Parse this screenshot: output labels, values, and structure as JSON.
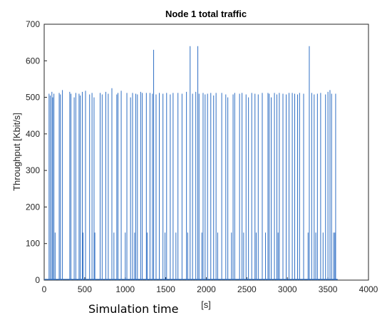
{
  "caption": "Simulation time",
  "chart_data": {
    "type": "line",
    "title": "Node 1 total traffic",
    "xlabel": "[s]",
    "ylabel": "Throughput [Kbit/s]",
    "xlim": [
      0,
      4000
    ],
    "ylim": [
      0,
      700
    ],
    "xticks": [
      0,
      500,
      1000,
      1500,
      2000,
      2500,
      3000,
      3500,
      4000
    ],
    "yticks": [
      0,
      100,
      200,
      300,
      400,
      500,
      600,
      700
    ],
    "grid": false,
    "series_color": "#2f6fc4",
    "series": [
      {
        "x_range": [
          0,
          3620
        ],
        "baseline_kbit_s": 0,
        "peaks": [
          {
            "x": 60,
            "y": 510
          },
          {
            "x": 75,
            "y": 505
          },
          {
            "x": 95,
            "y": 515
          },
          {
            "x": 105,
            "y": 500
          },
          {
            "x": 120,
            "y": 510
          },
          {
            "x": 135,
            "y": 130
          },
          {
            "x": 185,
            "y": 512
          },
          {
            "x": 200,
            "y": 508
          },
          {
            "x": 225,
            "y": 520
          },
          {
            "x": 315,
            "y": 515
          },
          {
            "x": 330,
            "y": 510
          },
          {
            "x": 370,
            "y": 500
          },
          {
            "x": 390,
            "y": 512
          },
          {
            "x": 430,
            "y": 510
          },
          {
            "x": 445,
            "y": 505
          },
          {
            "x": 470,
            "y": 515
          },
          {
            "x": 480,
            "y": 130
          },
          {
            "x": 510,
            "y": 518
          },
          {
            "x": 560,
            "y": 508
          },
          {
            "x": 590,
            "y": 512
          },
          {
            "x": 615,
            "y": 500
          },
          {
            "x": 625,
            "y": 130
          },
          {
            "x": 690,
            "y": 512
          },
          {
            "x": 715,
            "y": 508
          },
          {
            "x": 760,
            "y": 515
          },
          {
            "x": 790,
            "y": 510
          },
          {
            "x": 835,
            "y": 525
          },
          {
            "x": 860,
            "y": 130
          },
          {
            "x": 895,
            "y": 508
          },
          {
            "x": 910,
            "y": 512
          },
          {
            "x": 950,
            "y": 518
          },
          {
            "x": 1000,
            "y": 130
          },
          {
            "x": 1020,
            "y": 512
          },
          {
            "x": 1065,
            "y": 500
          },
          {
            "x": 1090,
            "y": 512
          },
          {
            "x": 1115,
            "y": 130
          },
          {
            "x": 1130,
            "y": 510
          },
          {
            "x": 1150,
            "y": 508
          },
          {
            "x": 1190,
            "y": 515
          },
          {
            "x": 1210,
            "y": 512
          },
          {
            "x": 1260,
            "y": 512
          },
          {
            "x": 1270,
            "y": 130
          },
          {
            "x": 1305,
            "y": 512
          },
          {
            "x": 1335,
            "y": 510
          },
          {
            "x": 1350,
            "y": 630
          },
          {
            "x": 1380,
            "y": 508
          },
          {
            "x": 1420,
            "y": 512
          },
          {
            "x": 1465,
            "y": 510
          },
          {
            "x": 1490,
            "y": 130
          },
          {
            "x": 1510,
            "y": 512
          },
          {
            "x": 1555,
            "y": 508
          },
          {
            "x": 1590,
            "y": 512
          },
          {
            "x": 1625,
            "y": 130
          },
          {
            "x": 1650,
            "y": 512
          },
          {
            "x": 1700,
            "y": 510
          },
          {
            "x": 1755,
            "y": 515
          },
          {
            "x": 1770,
            "y": 130
          },
          {
            "x": 1800,
            "y": 640
          },
          {
            "x": 1830,
            "y": 510
          },
          {
            "x": 1870,
            "y": 515
          },
          {
            "x": 1895,
            "y": 640
          },
          {
            "x": 1910,
            "y": 510
          },
          {
            "x": 1945,
            "y": 130
          },
          {
            "x": 1960,
            "y": 512
          },
          {
            "x": 1985,
            "y": 508
          },
          {
            "x": 2015,
            "y": 510
          },
          {
            "x": 2055,
            "y": 512
          },
          {
            "x": 2090,
            "y": 505
          },
          {
            "x": 2120,
            "y": 512
          },
          {
            "x": 2140,
            "y": 130
          },
          {
            "x": 2190,
            "y": 512
          },
          {
            "x": 2240,
            "y": 508
          },
          {
            "x": 2265,
            "y": 500
          },
          {
            "x": 2310,
            "y": 130
          },
          {
            "x": 2330,
            "y": 508
          },
          {
            "x": 2350,
            "y": 512
          },
          {
            "x": 2410,
            "y": 510
          },
          {
            "x": 2440,
            "y": 512
          },
          {
            "x": 2460,
            "y": 130
          },
          {
            "x": 2490,
            "y": 508
          },
          {
            "x": 2520,
            "y": 500
          },
          {
            "x": 2560,
            "y": 512
          },
          {
            "x": 2600,
            "y": 510
          },
          {
            "x": 2615,
            "y": 130
          },
          {
            "x": 2640,
            "y": 508
          },
          {
            "x": 2690,
            "y": 512
          },
          {
            "x": 2730,
            "y": 130
          },
          {
            "x": 2760,
            "y": 512
          },
          {
            "x": 2775,
            "y": 510
          },
          {
            "x": 2800,
            "y": 500
          },
          {
            "x": 2840,
            "y": 512
          },
          {
            "x": 2870,
            "y": 508
          },
          {
            "x": 2885,
            "y": 130
          },
          {
            "x": 2900,
            "y": 512
          },
          {
            "x": 2945,
            "y": 510
          },
          {
            "x": 2985,
            "y": 508
          },
          {
            "x": 3020,
            "y": 512
          },
          {
            "x": 3060,
            "y": 512
          },
          {
            "x": 3090,
            "y": 510
          },
          {
            "x": 3125,
            "y": 508
          },
          {
            "x": 3150,
            "y": 512
          },
          {
            "x": 3200,
            "y": 510
          },
          {
            "x": 3255,
            "y": 130
          },
          {
            "x": 3270,
            "y": 640
          },
          {
            "x": 3300,
            "y": 512
          },
          {
            "x": 3330,
            "y": 508
          },
          {
            "x": 3350,
            "y": 130
          },
          {
            "x": 3370,
            "y": 510
          },
          {
            "x": 3410,
            "y": 512
          },
          {
            "x": 3440,
            "y": 130
          },
          {
            "x": 3470,
            "y": 508
          },
          {
            "x": 3500,
            "y": 515
          },
          {
            "x": 3525,
            "y": 520
          },
          {
            "x": 3545,
            "y": 510
          },
          {
            "x": 3570,
            "y": 130
          },
          {
            "x": 3585,
            "y": 130
          },
          {
            "x": 3595,
            "y": 510
          }
        ]
      }
    ]
  }
}
